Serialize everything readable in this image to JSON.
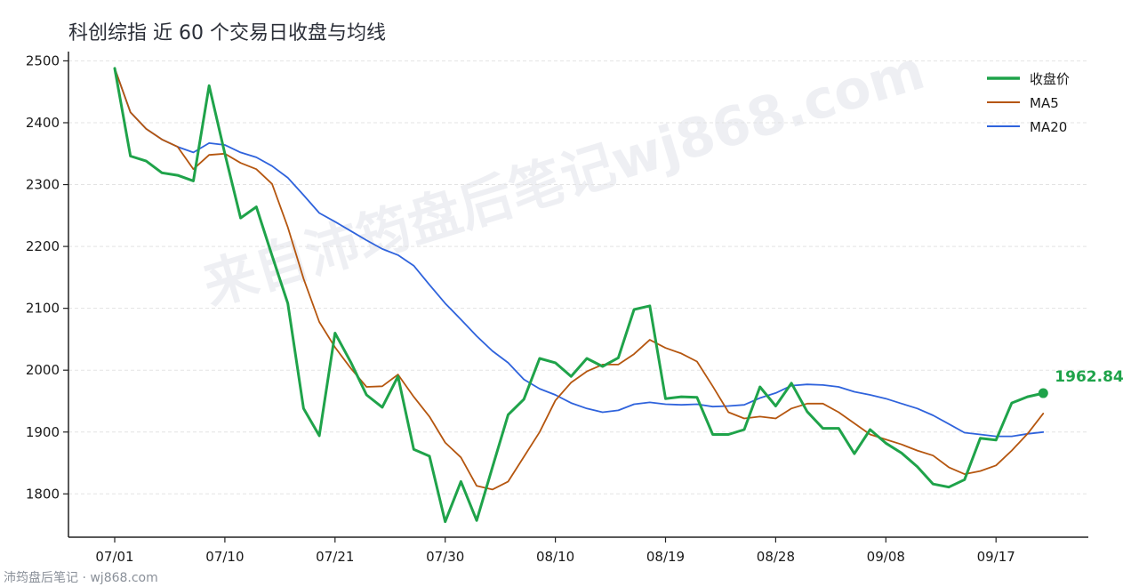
{
  "title": "科创综指 近 60 个交易日收盘与均线",
  "watermark": "来自沛筠盘后笔记wj868.com",
  "footer": "沛筠盘后笔记 · wj868.com",
  "colors": {
    "close": "#1fa34a",
    "ma5": "#b5560f",
    "ma20": "#2f63dc",
    "grid": "#e3e3e3",
    "axis": "#222222"
  },
  "chart_data": {
    "type": "line",
    "title": "科创综指 近 60 个交易日收盘与均线",
    "ylim": [
      1730,
      2515
    ],
    "yticks": [
      1800,
      1900,
      2000,
      2100,
      2200,
      2300,
      2400,
      2500
    ],
    "xticks": [
      {
        "index": 0,
        "label": "07/01"
      },
      {
        "index": 7,
        "label": "07/10"
      },
      {
        "index": 14,
        "label": "07/21"
      },
      {
        "index": 21,
        "label": "07/30"
      },
      {
        "index": 28,
        "label": "08/10"
      },
      {
        "index": 35,
        "label": "08/19"
      },
      {
        "index": 42,
        "label": "08/28"
      },
      {
        "index": 49,
        "label": "09/08"
      },
      {
        "index": 56,
        "label": "09/17"
      }
    ],
    "grid": "horizontal dashed",
    "legend_position": "top-right",
    "last_value_label": "1962.84",
    "series": [
      {
        "name": "收盘价",
        "key": "close",
        "values": [
          2488,
          2346,
          2338,
          2319,
          2315,
          2306,
          2460,
          2350,
          2246,
          2264,
          2185,
          2108,
          1938,
          1894,
          2060,
          2013,
          1960,
          1940,
          1990,
          1872,
          1861,
          1755,
          1820,
          1757,
          1843,
          1928,
          1953,
          2019,
          2012,
          1990,
          2019,
          2006,
          2020,
          2098,
          2104,
          1954,
          1957,
          1956,
          1896,
          1896,
          1904,
          1973,
          1942,
          1979,
          1933,
          1906,
          1906,
          1865,
          1904,
          1882,
          1866,
          1844,
          1816,
          1811,
          1823,
          1890,
          1887,
          1947,
          1957,
          1962.84
        ]
      },
      {
        "name": "MA5",
        "key": "ma5",
        "values": [
          2488,
          2417,
          2390,
          2373,
          2361,
          2325,
          2348,
          2350,
          2335,
          2325,
          2301,
          2231,
          2148,
          2078,
          2037,
          2003,
          1973,
          1974,
          1993,
          1957,
          1925,
          1883,
          1859,
          1813,
          1807,
          1820,
          1860,
          1900,
          1951,
          1980,
          1998,
          2009,
          2009,
          2026,
          2049,
          2036,
          2027,
          2014,
          1974,
          1932,
          1922,
          1925,
          1922,
          1938,
          1946,
          1946,
          1932,
          1914,
          1896,
          1888,
          1880,
          1870,
          1862,
          1843,
          1832,
          1837,
          1846,
          1870,
          1897,
          1930
        ]
      },
      {
        "name": "MA20",
        "key": "ma20",
        "values": [
          2488,
          2417,
          2390,
          2373,
          2361,
          2352,
          2367,
          2364,
          2352,
          2344,
          2330,
          2311,
          2283,
          2254,
          2240,
          2225,
          2210,
          2196,
          2186,
          2169,
          2138,
          2108,
          2082,
          2055,
          2031,
          2012,
          1985,
          1970,
          1960,
          1947,
          1938,
          1932,
          1935,
          1945,
          1948,
          1945,
          1944,
          1945,
          1941,
          1942,
          1944,
          1955,
          1963,
          1975,
          1977,
          1976,
          1973,
          1965,
          1960,
          1954,
          1946,
          1938,
          1927,
          1913,
          1899,
          1896,
          1893,
          1893,
          1897,
          1900
        ]
      }
    ]
  }
}
